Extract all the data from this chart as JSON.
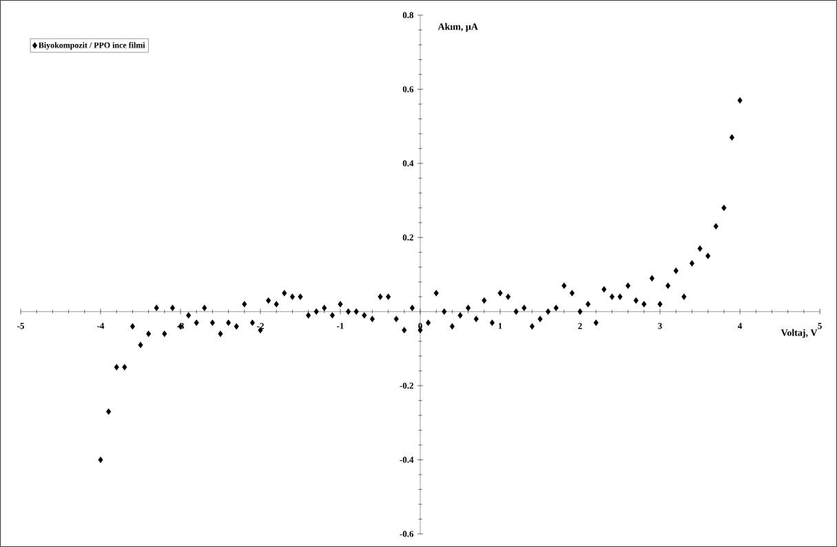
{
  "chart_data": {
    "type": "scatter",
    "xlabel": "Voltaj, V",
    "ylabel": "Akım, µA",
    "x": [
      -4,
      -3.9,
      -3.8,
      -3.7,
      -3.6,
      -3.5,
      -3.4,
      -3.3,
      -3.2,
      -3.1,
      -3,
      -2.9,
      -2.8,
      -2.7,
      -2.6,
      -2.5,
      -2.4,
      -2.3,
      -2.2,
      -2.1,
      -2,
      -1.9,
      -1.8,
      -1.7,
      -1.6,
      -1.5,
      -1.4,
      -1.3,
      -1.2,
      -1.1,
      -1,
      -0.9,
      -0.8,
      -0.7,
      -0.6,
      -0.5,
      -0.4,
      -0.3,
      -0.2,
      -0.1,
      0,
      0.1,
      0.2,
      0.3,
      0.4,
      0.5,
      0.6,
      0.7,
      0.8,
      0.9,
      1,
      1.1,
      1.2,
      1.3,
      1.4,
      1.5,
      1.6,
      1.7,
      1.8,
      1.9,
      2,
      2.1,
      2.2,
      2.3,
      2.4,
      2.5,
      2.6,
      2.7,
      2.8,
      2.9,
      3,
      3.1,
      3.2,
      3.3,
      3.4,
      3.5,
      3.6,
      3.7,
      3.8,
      3.9,
      4
    ],
    "series": [
      {
        "name": "Biyokompozit / PPO ince filmi",
        "color": "#000000",
        "values": [
          -0.4,
          -0.27,
          -0.15,
          -0.15,
          -0.04,
          -0.09,
          -0.06,
          0.01,
          -0.06,
          0.01,
          -0.04,
          -0.01,
          -0.03,
          0.01,
          -0.03,
          -0.06,
          -0.03,
          -0.04,
          0.02,
          -0.03,
          -0.05,
          0.03,
          0.02,
          0.05,
          0.04,
          0.04,
          -0.01,
          0.0,
          0.01,
          -0.01,
          0.02,
          0.0,
          0.0,
          -0.01,
          -0.02,
          0.04,
          0.04,
          -0.02,
          -0.05,
          0.01,
          -0.05,
          -0.03,
          0.05,
          0.0,
          -0.04,
          -0.01,
          0.01,
          -0.02,
          0.03,
          -0.03,
          0.05,
          0.04,
          0.0,
          0.01,
          -0.04,
          -0.02,
          0.0,
          0.01,
          0.07,
          0.05,
          0.0,
          0.02,
          -0.03,
          0.06,
          0.04,
          0.04,
          0.07,
          0.03,
          0.02,
          0.09,
          0.02,
          0.07,
          0.11,
          0.04,
          0.13,
          0.17,
          0.15,
          0.23,
          0.28,
          0.47,
          0.57
        ]
      }
    ],
    "xlim": [
      -5,
      5
    ],
    "ylim": [
      -0.6,
      0.8
    ],
    "xticks": [
      -5,
      -4,
      -3,
      -2,
      -1,
      0,
      1,
      2,
      3,
      4,
      5
    ],
    "yticks": [
      -0.6,
      -0.4,
      -0.2,
      {
        "value": 0,
        "label": null
      },
      0.2,
      0.4,
      0.6,
      0.8
    ],
    "marker": "diamond",
    "legend": "top left",
    "grid": false
  }
}
